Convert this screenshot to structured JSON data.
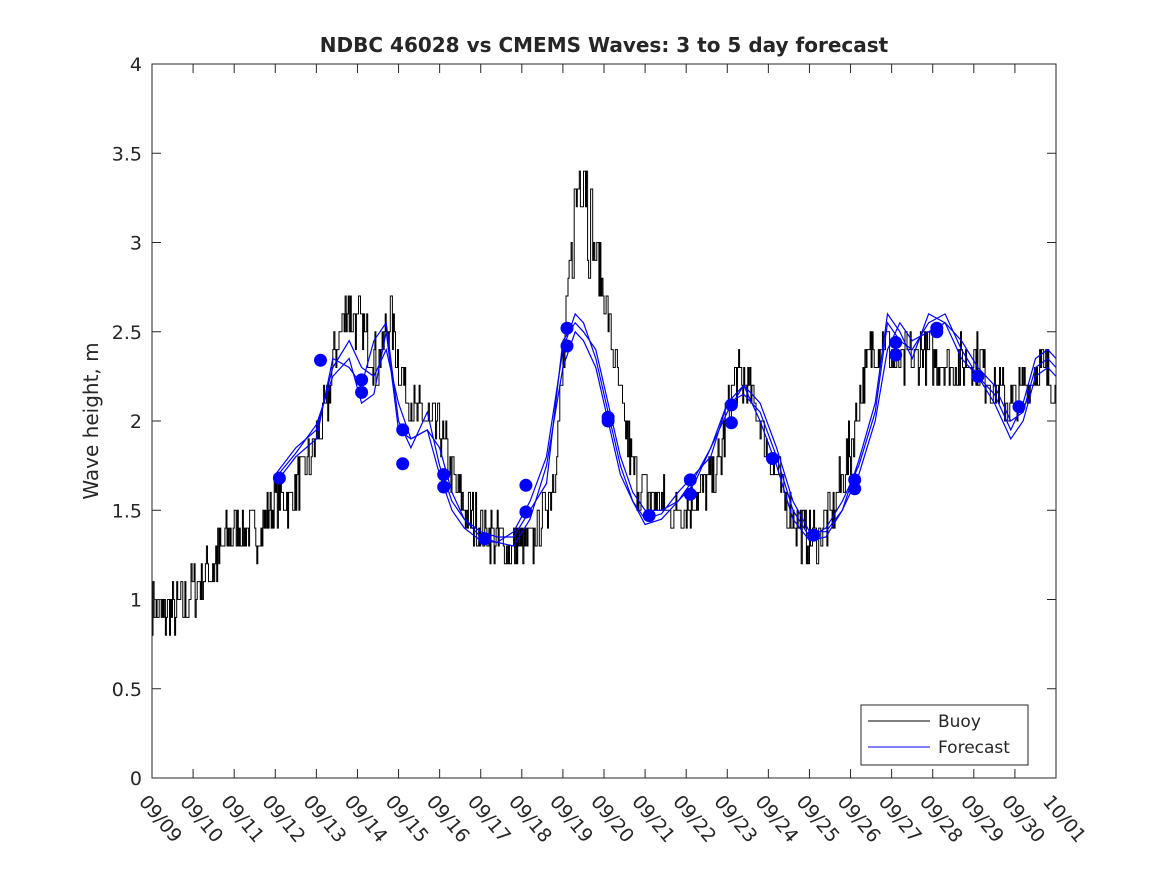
{
  "chart_data": {
    "type": "line",
    "title": "NDBC 46028 vs CMEMS Waves: 3 to 5 day forecast",
    "xlabel": "",
    "ylabel": "Wave height, m",
    "xlim": [
      0,
      22
    ],
    "ylim": [
      0,
      4
    ],
    "yticks": [
      0,
      0.5,
      1,
      1.5,
      2,
      2.5,
      3,
      3.5,
      4
    ],
    "ytick_labels": [
      "0",
      "0.5",
      "1",
      "1.5",
      "2",
      "2.5",
      "3",
      "3.5",
      "4"
    ],
    "xtick_labels": [
      "09/09",
      "09/10",
      "09/11",
      "09/12",
      "09/13",
      "09/14",
      "09/15",
      "09/16",
      "09/17",
      "09/18",
      "09/19",
      "09/20",
      "09/21",
      "09/22",
      "09/23",
      "09/24",
      "09/25",
      "09/26",
      "09/27",
      "09/28",
      "09/29",
      "09/30",
      "10/01"
    ],
    "legend": {
      "position": "bottom-right",
      "entries": [
        "Buoy",
        "Forecast"
      ]
    },
    "colors": {
      "buoy": "#000000",
      "forecast": "#0000ff",
      "axis": "#262626"
    },
    "buoy_anchor": {
      "x": [
        0,
        0.3,
        0.7,
        1,
        1.5,
        2,
        2.5,
        3,
        3.3,
        3.8,
        4,
        4.25,
        4.5,
        4.75,
        5,
        5.25,
        5.5,
        5.8,
        6,
        6.3,
        6.6,
        7,
        7.3,
        7.6,
        8,
        8.3,
        8.6,
        8.9,
        9.2,
        9.5,
        9.8,
        10,
        10.2,
        10.4,
        10.5,
        10.6,
        10.75,
        10.9,
        11.1,
        11.3,
        11.5,
        11.8,
        12,
        12.3,
        12.6,
        12.9,
        13.2,
        13.5,
        13.8,
        14,
        14.2,
        14.5,
        14.8,
        15,
        15.3,
        15.6,
        15.9,
        16.2,
        16.5,
        16.8,
        17,
        17.2,
        17.5,
        17.8,
        18,
        18.2,
        18.5,
        18.8,
        19,
        19.3,
        19.6,
        19.9,
        20.2,
        20.5,
        20.8,
        21,
        21.2,
        21.4,
        21.6,
        21.8,
        22
      ],
      "y": [
        0.95,
        0.9,
        0.95,
        1.05,
        1.2,
        1.4,
        1.35,
        1.55,
        1.55,
        1.75,
        1.9,
        2.05,
        2.45,
        2.65,
        2.55,
        2.45,
        2.3,
        2.6,
        2.3,
        2.1,
        2.0,
        1.95,
        1.7,
        1.5,
        1.4,
        1.35,
        1.3,
        1.3,
        1.3,
        1.45,
        1.75,
        2.3,
        2.95,
        3.4,
        3.55,
        3.2,
        2.95,
        2.85,
        2.55,
        2.25,
        1.95,
        1.65,
        1.6,
        1.55,
        1.5,
        1.5,
        1.6,
        1.65,
        1.75,
        2.05,
        2.25,
        2.2,
        2.0,
        1.85,
        1.6,
        1.45,
        1.35,
        1.35,
        1.45,
        1.7,
        1.85,
        2.1,
        2.4,
        2.45,
        2.35,
        2.3,
        2.35,
        2.4,
        2.35,
        2.3,
        2.3,
        2.35,
        2.3,
        2.2,
        2.1,
        2.1,
        2.2,
        2.25,
        2.3,
        2.25,
        2.2
      ]
    },
    "forecast_series": [
      {
        "name": "Forecast",
        "x": [
          3,
          3.5,
          4,
          4.4,
          4.8,
          5.1,
          5.4,
          5.7,
          6,
          6.3,
          6.7,
          7,
          7.3,
          7.6,
          8,
          8.4,
          8.8,
          9.2,
          9.6,
          10,
          10.3,
          10.5,
          10.8,
          11.1,
          11.4,
          11.7,
          12,
          12.4,
          12.8,
          13.2,
          13.6,
          14,
          14.4,
          14.8,
          15.2,
          15.6,
          16,
          16.4,
          16.8,
          17.2,
          17.6,
          17.9,
          18.2,
          18.5,
          18.9,
          19.3,
          19.7,
          20.1,
          20.5,
          20.9,
          21.2,
          21.5,
          21.8,
          22
        ],
        "y": [
          1.7,
          1.85,
          1.95,
          2.3,
          2.45,
          2.3,
          2.25,
          2.4,
          2.1,
          1.9,
          1.95,
          1.85,
          1.6,
          1.45,
          1.38,
          1.35,
          1.35,
          1.5,
          1.65,
          2.45,
          2.55,
          2.5,
          2.4,
          2.1,
          1.8,
          1.6,
          1.5,
          1.5,
          1.55,
          1.65,
          1.85,
          2.05,
          2.2,
          2.1,
          1.85,
          1.55,
          1.38,
          1.38,
          1.5,
          1.7,
          2.0,
          2.4,
          2.55,
          2.45,
          2.5,
          2.55,
          2.45,
          2.3,
          2.2,
          2.0,
          2.05,
          2.3,
          2.35,
          2.3
        ]
      },
      {
        "name": "Forecast",
        "x": [
          3,
          3.5,
          4,
          4.4,
          4.8,
          5.1,
          5.4,
          5.7,
          6,
          6.3,
          6.7,
          7,
          7.3,
          7.6,
          8,
          8.4,
          8.8,
          9.2,
          9.6,
          10,
          10.3,
          10.5,
          10.8,
          11.1,
          11.4,
          11.7,
          12,
          12.4,
          12.8,
          13.2,
          13.6,
          14,
          14.4,
          14.8,
          15.2,
          15.6,
          16,
          16.4,
          16.8,
          17.2,
          17.6,
          17.9,
          18.2,
          18.5,
          18.9,
          19.3,
          19.7,
          20.1,
          20.5,
          20.9,
          21.2,
          21.5,
          21.8,
          22
        ],
        "y": [
          1.65,
          1.8,
          1.9,
          2.35,
          2.3,
          2.2,
          2.45,
          2.55,
          2.0,
          1.85,
          2.05,
          1.75,
          1.55,
          1.45,
          1.35,
          1.32,
          1.38,
          1.55,
          1.8,
          2.4,
          2.6,
          2.55,
          2.35,
          2.05,
          1.75,
          1.55,
          1.45,
          1.48,
          1.6,
          1.7,
          1.8,
          2.1,
          2.15,
          2.05,
          1.8,
          1.5,
          1.35,
          1.4,
          1.55,
          1.75,
          2.05,
          2.55,
          2.45,
          2.4,
          2.55,
          2.6,
          2.4,
          2.25,
          2.15,
          1.95,
          2.1,
          2.35,
          2.4,
          2.35
        ]
      },
      {
        "name": "Forecast",
        "x": [
          3,
          3.5,
          4,
          4.4,
          4.8,
          5.1,
          5.4,
          5.7,
          6,
          6.3,
          6.7,
          7,
          7.3,
          7.6,
          8,
          8.4,
          8.8,
          9.2,
          9.6,
          10,
          10.3,
          10.5,
          10.8,
          11.1,
          11.4,
          11.7,
          12,
          12.4,
          12.8,
          13.2,
          13.6,
          14,
          14.4,
          14.8,
          15.2,
          15.6,
          16,
          16.4,
          16.8,
          17.2,
          17.6,
          17.9,
          18.2,
          18.5,
          18.9,
          19.3,
          19.7,
          20.1,
          20.5,
          20.9,
          21.2,
          21.5,
          21.8,
          22
        ],
        "y": [
          1.68,
          1.82,
          1.98,
          2.25,
          2.35,
          2.1,
          2.15,
          2.5,
          1.95,
          1.9,
          1.95,
          1.7,
          1.5,
          1.4,
          1.33,
          1.32,
          1.3,
          1.45,
          1.75,
          2.3,
          2.5,
          2.45,
          2.3,
          2.0,
          1.7,
          1.55,
          1.42,
          1.45,
          1.55,
          1.68,
          1.85,
          2.1,
          2.2,
          2.0,
          1.75,
          1.45,
          1.33,
          1.35,
          1.5,
          1.78,
          2.1,
          2.6,
          2.5,
          2.35,
          2.6,
          2.55,
          2.35,
          2.25,
          2.1,
          1.9,
          2.0,
          2.25,
          2.3,
          2.25
        ]
      }
    ],
    "forecast_markers": {
      "x": [
        3.1,
        4.1,
        5.1,
        5.1,
        6.1,
        6.1,
        7.1,
        7.1,
        8.1,
        9.1,
        9.1,
        10.1,
        10.1,
        11.1,
        11.1,
        12.1,
        13.1,
        13.1,
        14.1,
        14.1,
        15.1,
        16.1,
        17.1,
        17.1,
        18.1,
        18.1,
        19.1,
        19.1,
        20.1,
        21.1
      ],
      "y": [
        1.68,
        2.34,
        2.23,
        2.16,
        1.95,
        1.76,
        1.7,
        1.63,
        1.34,
        1.64,
        1.49,
        2.52,
        2.42,
        2.02,
        2.0,
        1.47,
        1.67,
        1.59,
        2.09,
        1.99,
        1.79,
        1.36,
        1.67,
        1.62,
        2.44,
        2.37,
        2.52,
        2.5,
        2.25,
        2.08
      ]
    }
  }
}
